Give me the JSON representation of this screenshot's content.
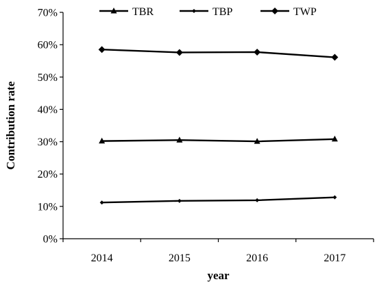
{
  "chart_data": {
    "type": "line",
    "xlabel": "year",
    "ylabel": "Contribution rate",
    "categories": [
      "2014",
      "2015",
      "2016",
      "2017"
    ],
    "ylim": [
      0,
      70
    ],
    "yticks": [
      0,
      10,
      20,
      30,
      40,
      50,
      60,
      70
    ],
    "ytick_labels": [
      "0%",
      "10%",
      "20%",
      "30%",
      "40%",
      "50%",
      "60%",
      "70%"
    ],
    "grid": false,
    "legend_position": "top",
    "series": [
      {
        "name": "TBR",
        "marker": "triangle",
        "values": [
          30.2,
          30.5,
          30.1,
          30.8
        ]
      },
      {
        "name": "TBP",
        "marker": "small-diamond",
        "values": [
          11.2,
          11.7,
          11.9,
          12.8
        ]
      },
      {
        "name": "TWP",
        "marker": "diamond",
        "values": [
          58.5,
          57.6,
          57.7,
          56.1
        ]
      }
    ],
    "line_color": "#000000"
  }
}
